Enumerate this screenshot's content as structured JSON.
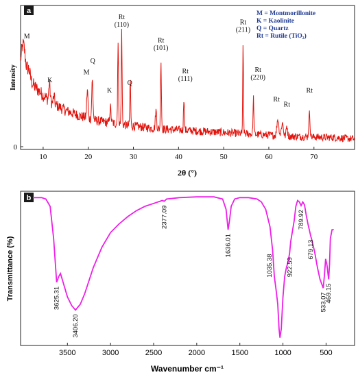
{
  "chart_data": [
    {
      "panel": "a",
      "type": "line",
      "xlabel": "2θ (°)",
      "ylabel": "Intensity",
      "xlim": [
        5,
        79
      ],
      "ylim": [
        0,
        100
      ],
      "x_ticks": [
        10,
        20,
        30,
        40,
        50,
        60,
        70
      ],
      "y_ticks": [
        0
      ],
      "line_color": "#e3120b",
      "legend_color": "#1f3a93",
      "legend": [
        "M = Montmorillonite",
        "K = Kaolinite",
        "Q = Quartz",
        "Rt = Rutile (TiO₂)"
      ],
      "baseline": [
        [
          5,
          60
        ],
        [
          6,
          58
        ],
        [
          7,
          53
        ],
        [
          8,
          47
        ],
        [
          10,
          40
        ],
        [
          12,
          34
        ],
        [
          15,
          28
        ],
        [
          18,
          24
        ],
        [
          22,
          20
        ],
        [
          26,
          18
        ],
        [
          30,
          16
        ],
        [
          35,
          14
        ],
        [
          40,
          13
        ],
        [
          45,
          12
        ],
        [
          50,
          11
        ],
        [
          55,
          10
        ],
        [
          60,
          9
        ],
        [
          65,
          8
        ],
        [
          70,
          7.5
        ],
        [
          75,
          7
        ],
        [
          79,
          6
        ]
      ],
      "noise_amplitude": 4,
      "peaks": [
        {
          "x": 5.6,
          "height": 20,
          "width": 0.6
        },
        {
          "x": 6.8,
          "height": 6,
          "width": 0.4
        },
        {
          "x": 11.4,
          "height": 14,
          "width": 0.2
        },
        {
          "x": 12.4,
          "height": 6,
          "width": 0.2
        },
        {
          "x": 19.8,
          "height": 22,
          "width": 0.2
        },
        {
          "x": 20.9,
          "height": 30,
          "width": 0.2
        },
        {
          "x": 24.9,
          "height": 12,
          "width": 0.2
        },
        {
          "x": 26.6,
          "height": 62,
          "width": 0.14
        },
        {
          "x": 27.4,
          "height": 72,
          "width": 0.13
        },
        {
          "x": 29.3,
          "height": 36,
          "width": 0.13
        },
        {
          "x": 35.0,
          "height": 14,
          "width": 0.2
        },
        {
          "x": 36.1,
          "height": 54,
          "width": 0.14
        },
        {
          "x": 41.2,
          "height": 26,
          "width": 0.14
        },
        {
          "x": 54.3,
          "height": 68,
          "width": 0.12
        },
        {
          "x": 56.6,
          "height": 28,
          "width": 0.14
        },
        {
          "x": 62.0,
          "height": 13,
          "width": 0.3
        },
        {
          "x": 63.0,
          "height": 10,
          "width": 0.3
        },
        {
          "x": 64.0,
          "height": 8,
          "width": 0.2
        },
        {
          "x": 69.0,
          "height": 18,
          "width": 0.2
        }
      ],
      "annotations": [
        {
          "x": 6.4,
          "y": 84,
          "lines": [
            "M"
          ]
        },
        {
          "x": 11.5,
          "y": 50,
          "lines": [
            "K"
          ]
        },
        {
          "x": 19.6,
          "y": 56,
          "lines": [
            "M"
          ]
        },
        {
          "x": 21.0,
          "y": 65,
          "lines": [
            "Q"
          ]
        },
        {
          "x": 24.7,
          "y": 42,
          "lines": [
            "K"
          ]
        },
        {
          "x": 27.4,
          "y": 93,
          "lines": [
            "Rt",
            "(110)"
          ]
        },
        {
          "x": 29.2,
          "y": 48,
          "lines": [
            "Q"
          ]
        },
        {
          "x": 36.1,
          "y": 75,
          "lines": [
            "Rt",
            "(101)"
          ]
        },
        {
          "x": 41.5,
          "y": 51,
          "lines": [
            "Rt",
            "(111)"
          ]
        },
        {
          "x": 54.3,
          "y": 89,
          "lines": [
            "Rt",
            "(211)"
          ]
        },
        {
          "x": 57.6,
          "y": 52,
          "lines": [
            "Rt",
            "(220)"
          ]
        },
        {
          "x": 61.7,
          "y": 35,
          "lines": [
            "Rt"
          ]
        },
        {
          "x": 64.0,
          "y": 31,
          "lines": [
            "Rt"
          ]
        },
        {
          "x": 69.0,
          "y": 42,
          "lines": [
            "Rt"
          ]
        }
      ]
    },
    {
      "panel": "b",
      "type": "line",
      "xlabel": "Wavenumber cm⁻¹",
      "ylabel": "Transmittance (%)",
      "xlim": [
        3900,
        400
      ],
      "ylim": [
        0,
        100
      ],
      "x_ticks": [
        3500,
        3000,
        2500,
        2000,
        1500,
        1000,
        500
      ],
      "line_color": "#ee1fe8",
      "points": [
        [
          3900,
          98
        ],
        [
          3800,
          98
        ],
        [
          3750,
          97
        ],
        [
          3700,
          92
        ],
        [
          3660,
          70
        ],
        [
          3625,
          40
        ],
        [
          3600,
          44
        ],
        [
          3580,
          46
        ],
        [
          3550,
          40
        ],
        [
          3500,
          30
        ],
        [
          3450,
          24
        ],
        [
          3406,
          21
        ],
        [
          3350,
          25
        ],
        [
          3300,
          32
        ],
        [
          3200,
          50
        ],
        [
          3100,
          64
        ],
        [
          3000,
          74
        ],
        [
          2900,
          80
        ],
        [
          2800,
          85
        ],
        [
          2700,
          89
        ],
        [
          2600,
          92
        ],
        [
          2500,
          94
        ],
        [
          2400,
          96
        ],
        [
          2377,
          95.5
        ],
        [
          2350,
          97
        ],
        [
          2200,
          98
        ],
        [
          2000,
          98.5
        ],
        [
          1800,
          98.5
        ],
        [
          1700,
          97
        ],
        [
          1660,
          90
        ],
        [
          1636,
          76
        ],
        [
          1620,
          82
        ],
        [
          1600,
          92
        ],
        [
          1560,
          97
        ],
        [
          1500,
          98
        ],
        [
          1400,
          98
        ],
        [
          1300,
          97
        ],
        [
          1250,
          95
        ],
        [
          1200,
          90
        ],
        [
          1150,
          78
        ],
        [
          1120,
          62
        ],
        [
          1100,
          44
        ],
        [
          1080,
          35
        ],
        [
          1060,
          25
        ],
        [
          1045,
          8
        ],
        [
          1035,
          2
        ],
        [
          1020,
          8
        ],
        [
          1000,
          30
        ],
        [
          980,
          44
        ],
        [
          960,
          50
        ],
        [
          940,
          54
        ],
        [
          923,
          60
        ],
        [
          910,
          68
        ],
        [
          890,
          75
        ],
        [
          870,
          82
        ],
        [
          850,
          92
        ],
        [
          830,
          96
        ],
        [
          810,
          95
        ],
        [
          790,
          92.5
        ],
        [
          770,
          95
        ],
        [
          750,
          93
        ],
        [
          730,
          86
        ],
        [
          710,
          80
        ],
        [
          679,
          72
        ],
        [
          660,
          68
        ],
        [
          630,
          60
        ],
        [
          600,
          50
        ],
        [
          570,
          42
        ],
        [
          545,
          38
        ],
        [
          533,
          36
        ],
        [
          520,
          44
        ],
        [
          505,
          56
        ],
        [
          490,
          52
        ],
        [
          470,
          42
        ],
        [
          460,
          52
        ],
        [
          450,
          70
        ],
        [
          430,
          76
        ],
        [
          410,
          76
        ]
      ],
      "peak_labels": [
        {
          "x": 3625,
          "y": 40,
          "label": "3625.31",
          "side": "below"
        },
        {
          "x": 3406,
          "y": 21,
          "label": "3406.20",
          "side": "below"
        },
        {
          "x": 2377,
          "y": 95.5,
          "label": "2377.09",
          "side": "below"
        },
        {
          "x": 1636,
          "y": 76,
          "label": "1636.01",
          "side": "below"
        },
        {
          "x": 1035,
          "y": 50,
          "label": "1035.38",
          "side": "left"
        },
        {
          "x": 923,
          "y": 60,
          "label": "922.59",
          "side": "below"
        },
        {
          "x": 790,
          "y": 92.5,
          "label": "789.92",
          "side": "below"
        },
        {
          "x": 679,
          "y": 72,
          "label": "679.13",
          "side": "below"
        },
        {
          "x": 533,
          "y": 36,
          "label": "533.07",
          "side": "below"
        },
        {
          "x": 470,
          "y": 42,
          "label": "469.15",
          "side": "below"
        }
      ]
    }
  ]
}
